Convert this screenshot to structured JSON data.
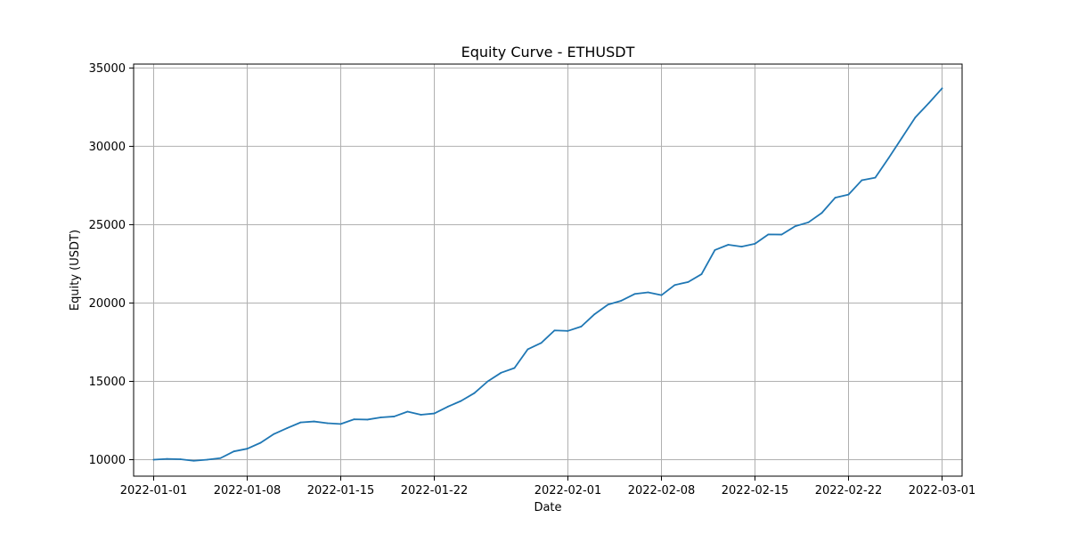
{
  "chart_data": {
    "type": "line",
    "title": "Equity Curve - ETHUSDT",
    "xlabel": "Date",
    "ylabel": "Equity (USDT)",
    "grid": true,
    "legend": "none",
    "line_color": "#1f77b4",
    "xlim": [
      "2021-12-30T12:00",
      "2022-03-02T12:00"
    ],
    "ylim": [
      8950,
      35250
    ],
    "x_ticks": [
      "2022-01-01",
      "2022-01-08",
      "2022-01-15",
      "2022-01-22",
      "2022-02-01",
      "2022-02-08",
      "2022-02-15",
      "2022-02-22",
      "2022-03-01"
    ],
    "y_ticks": [
      10000,
      15000,
      20000,
      25000,
      30000,
      35000
    ],
    "series": [
      {
        "x": [
          "2022-01-01",
          "2022-01-02",
          "2022-01-03",
          "2022-01-04",
          "2022-01-05",
          "2022-01-06",
          "2022-01-07",
          "2022-01-08",
          "2022-01-09",
          "2022-01-10",
          "2022-01-11",
          "2022-01-12",
          "2022-01-13",
          "2022-01-14",
          "2022-01-15",
          "2022-01-16",
          "2022-01-17",
          "2022-01-18",
          "2022-01-19",
          "2022-01-20",
          "2022-01-21",
          "2022-01-22",
          "2022-01-23",
          "2022-01-24",
          "2022-01-25",
          "2022-01-26",
          "2022-01-27",
          "2022-01-28",
          "2022-01-29",
          "2022-01-30",
          "2022-01-31",
          "2022-02-01",
          "2022-02-02",
          "2022-02-03",
          "2022-02-04",
          "2022-02-05",
          "2022-02-06",
          "2022-02-07",
          "2022-02-08",
          "2022-02-09",
          "2022-02-10",
          "2022-02-11",
          "2022-02-12",
          "2022-02-13",
          "2022-02-14",
          "2022-02-15",
          "2022-02-16",
          "2022-02-17",
          "2022-02-18",
          "2022-02-19",
          "2022-02-20",
          "2022-02-21",
          "2022-02-22",
          "2022-02-23",
          "2022-02-24",
          "2022-02-25",
          "2022-02-26",
          "2022-02-27",
          "2022-02-28",
          "2022-03-01"
        ],
        "values": [
          10000,
          10050,
          10030,
          9930,
          10000,
          10100,
          10530,
          10700,
          11080,
          11640,
          12020,
          12380,
          12440,
          12330,
          12280,
          12580,
          12560,
          12700,
          12760,
          13070,
          12870,
          12950,
          13380,
          13750,
          14250,
          15000,
          15550,
          15850,
          17050,
          17450,
          18250,
          18220,
          18500,
          19290,
          19900,
          20150,
          20580,
          20680,
          20500,
          21150,
          21340,
          21840,
          23380,
          23720,
          23600,
          23780,
          24380,
          24370,
          24900,
          25150,
          25750,
          26720,
          26920,
          27840,
          28000,
          29250,
          30550,
          31850,
          32750,
          33700
        ]
      }
    ]
  }
}
